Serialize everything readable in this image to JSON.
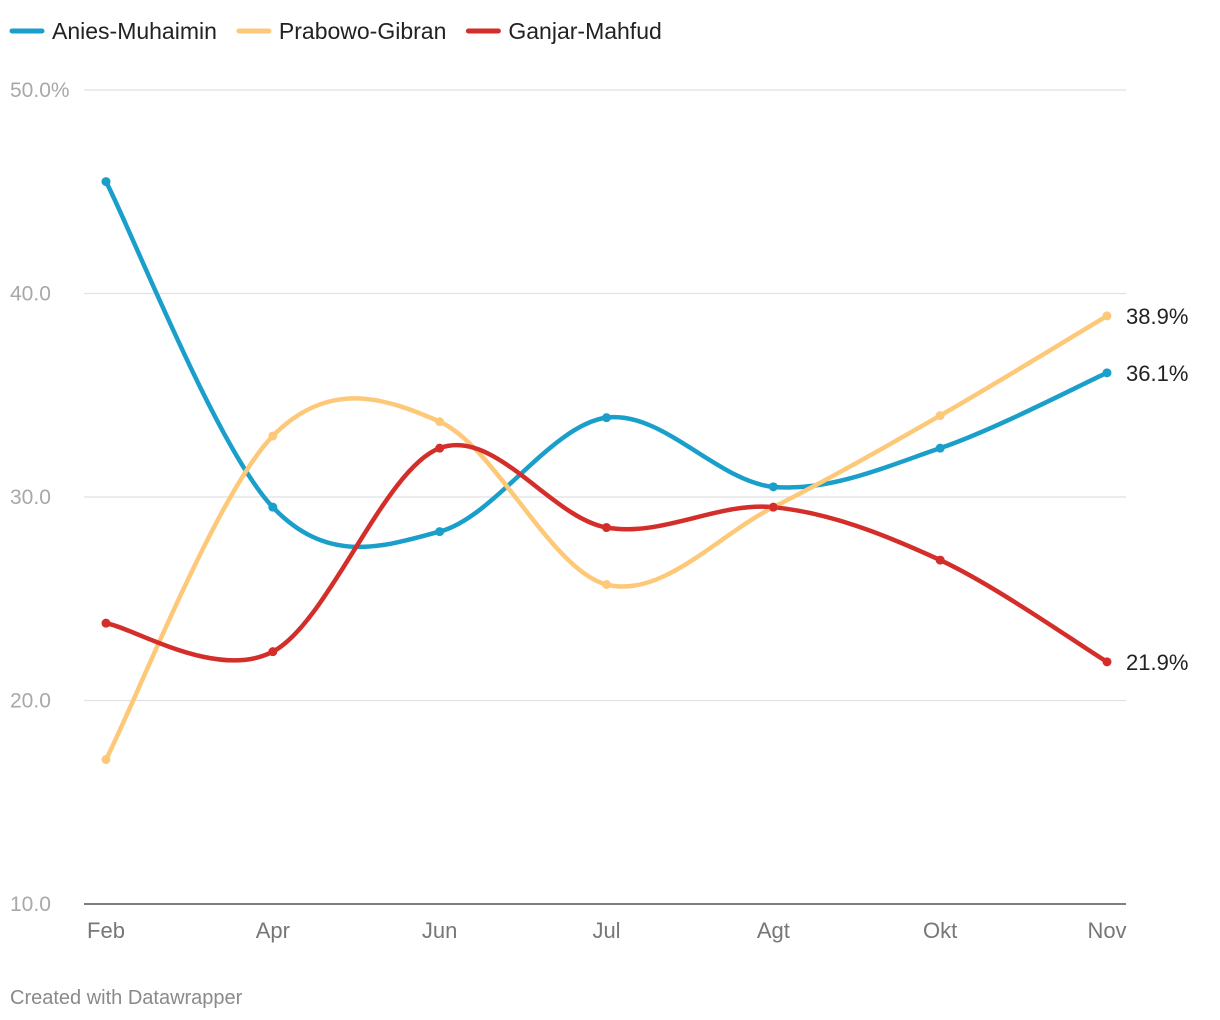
{
  "chart_data": {
    "type": "line",
    "categories": [
      "Feb",
      "Apr",
      "Jun",
      "Jul",
      "Agt",
      "Okt",
      "Nov"
    ],
    "ylim": [
      10,
      50
    ],
    "yticks": [
      "10.0",
      "20.0",
      "30.0",
      "40.0",
      "50.0%"
    ],
    "ytick_values": [
      10,
      20,
      30,
      40,
      50
    ],
    "grid": true,
    "legend_position": "top-left",
    "curve": "smooth",
    "series": [
      {
        "name": "Anies-Muhaimin",
        "color": "#1a9fcb",
        "values": [
          45.5,
          29.5,
          28.3,
          33.9,
          30.5,
          32.4,
          36.1
        ],
        "end_label": "36.1%"
      },
      {
        "name": "Prabowo-Gibran",
        "color": "#fdc978",
        "values": [
          17.1,
          33.0,
          33.7,
          25.7,
          29.5,
          34.0,
          38.9
        ],
        "end_label": "38.9%"
      },
      {
        "name": "Ganjar-Mahfud",
        "color": "#d42e2b",
        "values": [
          23.8,
          22.4,
          32.4,
          28.5,
          29.5,
          26.9,
          21.9
        ],
        "end_label": "21.9%"
      }
    ]
  },
  "credit": "Created with Datawrapper"
}
